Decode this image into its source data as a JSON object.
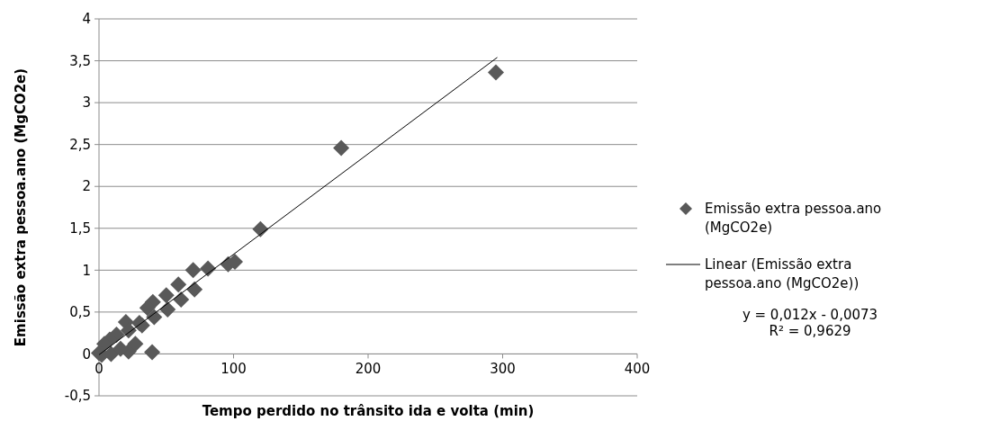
{
  "chart_data": {
    "type": "scatter",
    "xlabel": "Tempo perdido no trânsito ida e volta (min)",
    "ylabel": "Emissão extra pessoa.ano (MgCO2e)",
    "xlim": [
      0,
      400
    ],
    "ylim": [
      -0.5,
      4
    ],
    "xticks": [
      0,
      100,
      200,
      300,
      400
    ],
    "yticks": [
      {
        "value": -0.5,
        "label": "-0,5"
      },
      0,
      {
        "value": 0.5,
        "label": "0,5"
      },
      1,
      {
        "value": 1.5,
        "label": "1,5"
      },
      2,
      {
        "value": 2.5,
        "label": "2,5"
      },
      3,
      {
        "value": 3.5,
        "label": "3,5"
      },
      4
    ],
    "grid": "y",
    "legend": "right",
    "series": [
      {
        "name": "Emissão extra pessoa.ano (MgCO2e)",
        "color": "#595959",
        "marker": "diamond",
        "x": [
          295,
          180,
          120,
          96,
          101,
          81,
          70,
          59,
          71,
          61,
          50,
          51,
          40,
          36,
          41,
          39.5,
          32,
          30,
          20,
          22,
          13,
          8,
          4,
          0,
          9,
          22,
          27,
          16,
          2
        ],
        "values": [
          3.36,
          2.46,
          1.49,
          1.07,
          1.1,
          1.02,
          1,
          0.83,
          0.77,
          0.65,
          0.7,
          0.53,
          0.62,
          0.55,
          0.44,
          0.02,
          0.34,
          0.37,
          0.38,
          0.28,
          0.23,
          0.17,
          0.12,
          0.01,
          0,
          0.03,
          0.12,
          0.06,
          -0.01
        ]
      },
      {
        "name": "Linear (Emissão extra pessoa.ano (MgCO2e))",
        "color": "#000000",
        "type": "line",
        "marker": "none",
        "line_style": "solid",
        "x": [
          0,
          296
        ],
        "values": [
          -0.01,
          3.54
        ]
      }
    ],
    "annotations": [
      "y = 0,012x - 0,0073",
      "R² = 0,9629"
    ]
  }
}
